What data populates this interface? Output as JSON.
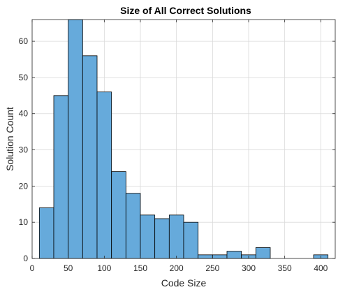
{
  "chart_data": {
    "type": "bar",
    "title": "Size of All Correct Solutions",
    "xlabel": "Code Size",
    "ylabel": "Solution Count",
    "xlim": [
      0,
      420
    ],
    "ylim": [
      0,
      66
    ],
    "xticks": [
      0,
      50,
      100,
      150,
      200,
      250,
      300,
      350,
      400
    ],
    "yticks": [
      0,
      10,
      20,
      30,
      40,
      50,
      60
    ],
    "grid": true,
    "bar_color": "#66aadb",
    "bins": [
      {
        "start": 10,
        "end": 30,
        "count": 14
      },
      {
        "start": 30,
        "end": 50,
        "count": 45
      },
      {
        "start": 50,
        "end": 70,
        "count": 66
      },
      {
        "start": 70,
        "end": 90,
        "count": 56
      },
      {
        "start": 90,
        "end": 110,
        "count": 46
      },
      {
        "start": 110,
        "end": 130,
        "count": 24
      },
      {
        "start": 130,
        "end": 150,
        "count": 18
      },
      {
        "start": 150,
        "end": 170,
        "count": 12
      },
      {
        "start": 170,
        "end": 190,
        "count": 11
      },
      {
        "start": 190,
        "end": 210,
        "count": 12
      },
      {
        "start": 210,
        "end": 230,
        "count": 10
      },
      {
        "start": 230,
        "end": 250,
        "count": 1
      },
      {
        "start": 250,
        "end": 270,
        "count": 1
      },
      {
        "start": 270,
        "end": 290,
        "count": 2
      },
      {
        "start": 290,
        "end": 310,
        "count": 1
      },
      {
        "start": 310,
        "end": 330,
        "count": 3
      },
      {
        "start": 330,
        "end": 350,
        "count": 0
      },
      {
        "start": 350,
        "end": 370,
        "count": 0
      },
      {
        "start": 370,
        "end": 390,
        "count": 0
      },
      {
        "start": 390,
        "end": 410,
        "count": 1
      }
    ]
  }
}
